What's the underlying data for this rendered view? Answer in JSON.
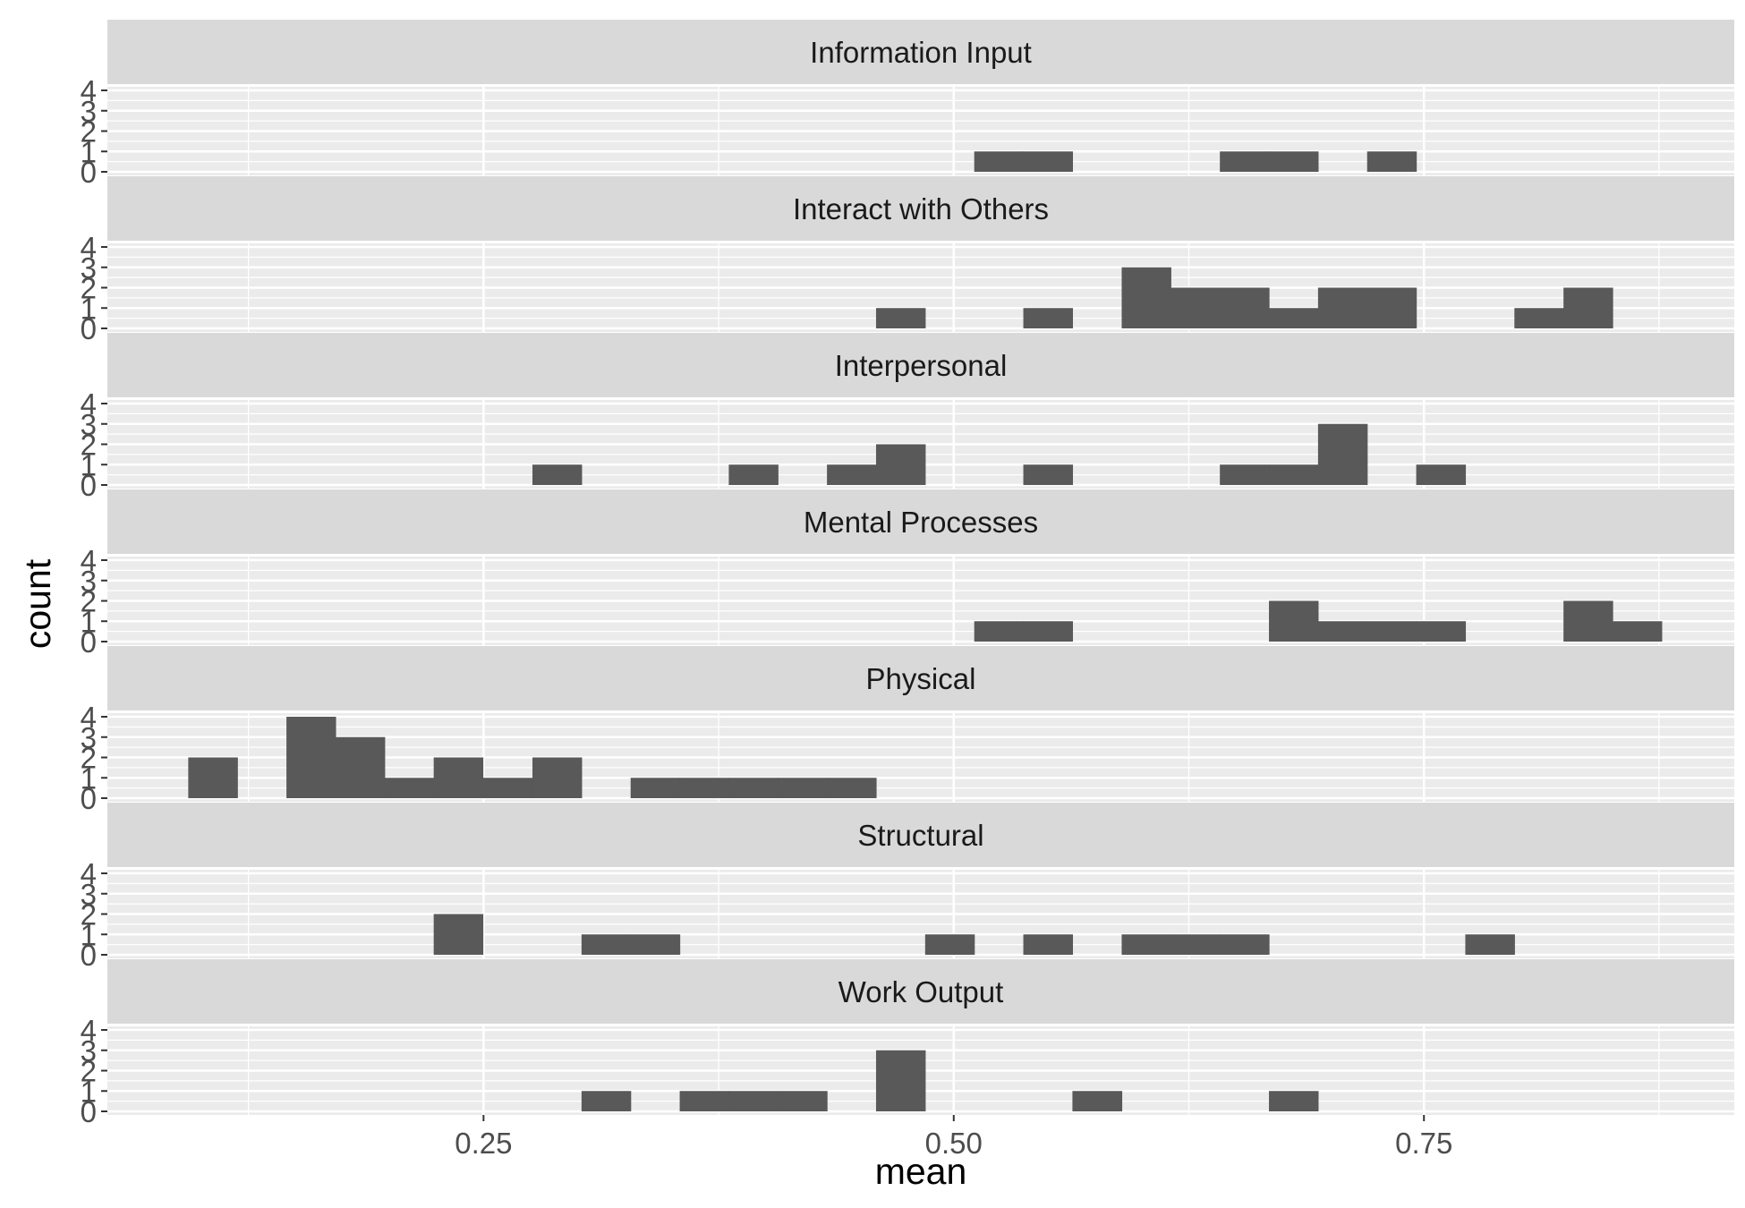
{
  "chart_data": {
    "type": "bar",
    "subtype": "faceted histogram",
    "xlabel": "mean",
    "ylabel": "count",
    "xlim": [
      0.05,
      0.915
    ],
    "ylim": [
      0,
      4
    ],
    "x_ticks": [
      0.25,
      0.5,
      0.75
    ],
    "x_tick_labels": [
      "0.25",
      "0.50",
      "0.75"
    ],
    "y_ticks": [
      0,
      1,
      2,
      3,
      4
    ],
    "y_tick_labels": [
      "0",
      "1",
      "2",
      "3",
      "4"
    ],
    "bin_width": 0.0261,
    "grid": true,
    "facets": [
      {
        "name": "Information Input",
        "bins": [
          {
            "x0": 0.5109,
            "x1": 0.537,
            "count": 1
          },
          {
            "x0": 0.537,
            "x1": 0.5631,
            "count": 1
          },
          {
            "x0": 0.6415,
            "x1": 0.6676,
            "count": 1
          },
          {
            "x0": 0.6676,
            "x1": 0.6937,
            "count": 1
          },
          {
            "x0": 0.7198,
            "x1": 0.7459,
            "count": 1
          }
        ]
      },
      {
        "name": "Interact with Others",
        "bins": [
          {
            "x0": 0.4587,
            "x1": 0.4848,
            "count": 1
          },
          {
            "x0": 0.537,
            "x1": 0.5631,
            "count": 1
          },
          {
            "x0": 0.5893,
            "x1": 0.6154,
            "count": 3
          },
          {
            "x0": 0.6154,
            "x1": 0.6415,
            "count": 2
          },
          {
            "x0": 0.6415,
            "x1": 0.6676,
            "count": 2
          },
          {
            "x0": 0.6676,
            "x1": 0.6937,
            "count": 1
          },
          {
            "x0": 0.6937,
            "x1": 0.7198,
            "count": 2
          },
          {
            "x0": 0.7198,
            "x1": 0.7459,
            "count": 2
          },
          {
            "x0": 0.7981,
            "x1": 0.8242,
            "count": 1
          },
          {
            "x0": 0.8242,
            "x1": 0.8503,
            "count": 2
          }
        ]
      },
      {
        "name": "Interpersonal",
        "bins": [
          {
            "x0": 0.276,
            "x1": 0.3021,
            "count": 1
          },
          {
            "x0": 0.3804,
            "x1": 0.4065,
            "count": 1
          },
          {
            "x0": 0.4326,
            "x1": 0.4587,
            "count": 1
          },
          {
            "x0": 0.4587,
            "x1": 0.4848,
            "count": 2
          },
          {
            "x0": 0.537,
            "x1": 0.5631,
            "count": 1
          },
          {
            "x0": 0.6415,
            "x1": 0.6676,
            "count": 1
          },
          {
            "x0": 0.6676,
            "x1": 0.6937,
            "count": 1
          },
          {
            "x0": 0.6937,
            "x1": 0.7198,
            "count": 3
          },
          {
            "x0": 0.7459,
            "x1": 0.772,
            "count": 1
          }
        ]
      },
      {
        "name": "Mental Processes",
        "bins": [
          {
            "x0": 0.5109,
            "x1": 0.537,
            "count": 1
          },
          {
            "x0": 0.537,
            "x1": 0.5631,
            "count": 1
          },
          {
            "x0": 0.6676,
            "x1": 0.6937,
            "count": 2
          },
          {
            "x0": 0.6937,
            "x1": 0.7198,
            "count": 1
          },
          {
            "x0": 0.7198,
            "x1": 0.7459,
            "count": 1
          },
          {
            "x0": 0.7459,
            "x1": 0.772,
            "count": 1
          },
          {
            "x0": 0.8242,
            "x1": 0.8503,
            "count": 2
          },
          {
            "x0": 0.8503,
            "x1": 0.8764,
            "count": 1
          }
        ]
      },
      {
        "name": "Physical",
        "bins": [
          {
            "x0": 0.093,
            "x1": 0.1191,
            "count": 2
          },
          {
            "x0": 0.1452,
            "x1": 0.1713,
            "count": 4
          },
          {
            "x0": 0.1713,
            "x1": 0.1974,
            "count": 3
          },
          {
            "x0": 0.1974,
            "x1": 0.2235,
            "count": 1
          },
          {
            "x0": 0.2235,
            "x1": 0.2496,
            "count": 2
          },
          {
            "x0": 0.2496,
            "x1": 0.276,
            "count": 1
          },
          {
            "x0": 0.276,
            "x1": 0.3021,
            "count": 2
          },
          {
            "x0": 0.3282,
            "x1": 0.3543,
            "count": 1
          },
          {
            "x0": 0.3543,
            "x1": 0.3804,
            "count": 1
          },
          {
            "x0": 0.3804,
            "x1": 0.4065,
            "count": 1
          },
          {
            "x0": 0.4065,
            "x1": 0.4326,
            "count": 1
          },
          {
            "x0": 0.4326,
            "x1": 0.4587,
            "count": 1
          }
        ]
      },
      {
        "name": "Structural",
        "bins": [
          {
            "x0": 0.2235,
            "x1": 0.2496,
            "count": 2
          },
          {
            "x0": 0.3021,
            "x1": 0.3282,
            "count": 1
          },
          {
            "x0": 0.3282,
            "x1": 0.3543,
            "count": 1
          },
          {
            "x0": 0.4848,
            "x1": 0.5109,
            "count": 1
          },
          {
            "x0": 0.537,
            "x1": 0.5631,
            "count": 1
          },
          {
            "x0": 0.5893,
            "x1": 0.6154,
            "count": 1
          },
          {
            "x0": 0.6154,
            "x1": 0.6415,
            "count": 1
          },
          {
            "x0": 0.6415,
            "x1": 0.6676,
            "count": 1
          },
          {
            "x0": 0.772,
            "x1": 0.7981,
            "count": 1
          }
        ]
      },
      {
        "name": "Work Output",
        "bins": [
          {
            "x0": 0.3021,
            "x1": 0.3282,
            "count": 1
          },
          {
            "x0": 0.3543,
            "x1": 0.3804,
            "count": 1
          },
          {
            "x0": 0.3804,
            "x1": 0.4065,
            "count": 1
          },
          {
            "x0": 0.4065,
            "x1": 0.4326,
            "count": 1
          },
          {
            "x0": 0.4587,
            "x1": 0.4848,
            "count": 3
          },
          {
            "x0": 0.5631,
            "x1": 0.5893,
            "count": 1
          },
          {
            "x0": 0.6676,
            "x1": 0.6937,
            "count": 1
          }
        ]
      }
    ]
  },
  "colors": {
    "bar_fill": "#595959",
    "panel_background": "#ebebeb",
    "strip_background": "#d9d9d9",
    "gridline": "#ffffff",
    "tick_text": "#4d4d4d",
    "strip_text": "#1a1a1a"
  }
}
